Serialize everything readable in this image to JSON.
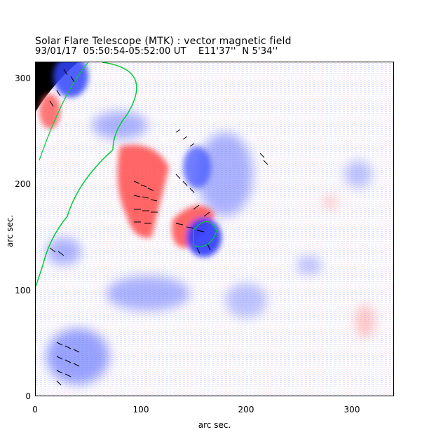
{
  "header": {
    "title": "Solar Flare Telescope (MTK) : vector magnetic field",
    "subtitle": "93/01/17  05:50:54-05:52:00 UT    E11'37''  N 5'34''"
  },
  "axes": {
    "xlabel": "arc sec.",
    "ylabel": "arc sec.",
    "xlim": [
      0,
      340
    ],
    "ylim": [
      0,
      316
    ],
    "xticks": [
      "0",
      "100",
      "200",
      "300"
    ],
    "yticks": [
      "0",
      "100",
      "200",
      "300"
    ]
  },
  "colors": {
    "positive_field": "#ff4d4d",
    "negative_field": "#3b4cff",
    "contour": "#00cc33",
    "vectors": "#000000",
    "off_limb": "#000000"
  }
}
